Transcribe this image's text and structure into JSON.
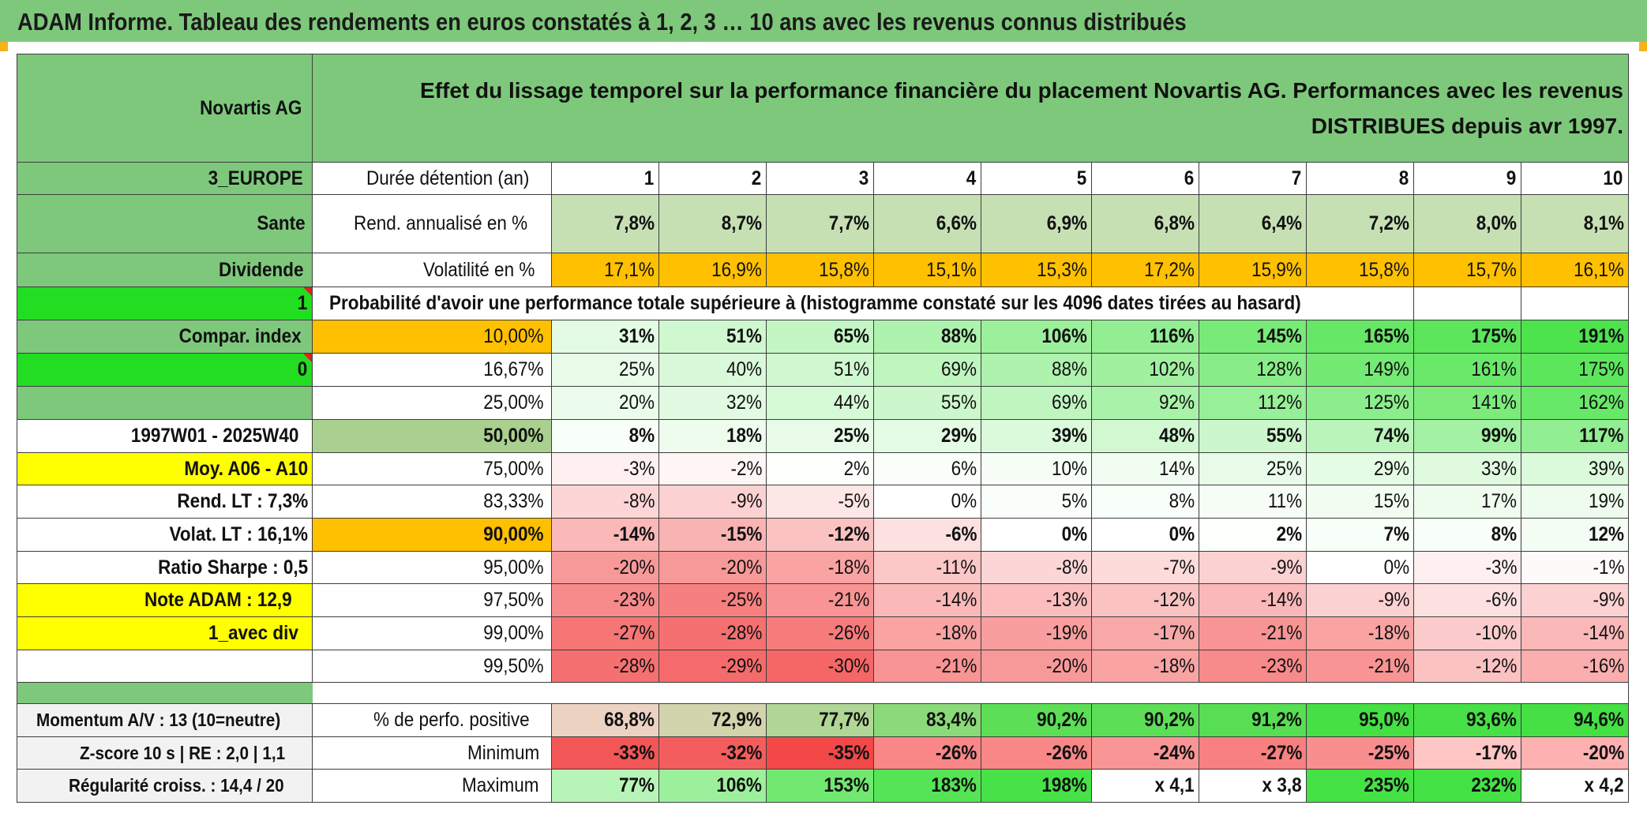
{
  "title": "ADAM Informe. Tableau des rendements en euros constatés à 1, 2, 3 … 10 ans avec les revenus connus distribués",
  "header": {
    "stock_name": "Novartis AG",
    "description": "Effet du lissage temporel sur la performance financière du placement Novartis AG. Performances avec les revenus DISTRIBUES depuis avr 1997."
  },
  "left_panel": {
    "zone": "3_EUROPE",
    "sector": "Sante",
    "type": "Dividende",
    "value1": "1",
    "compar_index": "Compar. index",
    "value0": "0",
    "period": "1997W01 - 2025W40",
    "moy": "Moy. A06 - A10",
    "rend_lt": "Rend. LT :   7,3%",
    "volat_lt": "Volat. LT :   16,1%",
    "sharpe": "Ratio Sharpe :   0,5",
    "note": "Note ADAM : 12,9",
    "avec_div": "1_avec div",
    "momentum": "Momentum A/V : 13 (10=neutre)",
    "zscore": "Z-score 10 s | RE : 2,0 | 1,1",
    "regularite": "Régularité croiss. : 14,4 / 20"
  },
  "labels": {
    "duree": "Durée détention (an)",
    "rend": "Rend. annualisé en %",
    "volat": "Volatilité en %",
    "proba": "Probabilité d'avoir une performance totale supérieure à (histogramme constaté sur les 4096 dates tirées au hasard)",
    "perfo_pos": "% de perfo. positive",
    "minimum": "Minimum",
    "maximum": "Maximum"
  },
  "years": [
    "1",
    "2",
    "3",
    "4",
    "5",
    "6",
    "7",
    "8",
    "9",
    "10"
  ],
  "rendement": [
    "7,8%",
    "8,7%",
    "7,7%",
    "6,6%",
    "6,9%",
    "6,8%",
    "6,4%",
    "7,2%",
    "8,0%",
    "8,1%"
  ],
  "volatilite": [
    "17,1%",
    "16,9%",
    "15,8%",
    "15,1%",
    "15,3%",
    "17,2%",
    "15,9%",
    "15,8%",
    "15,7%",
    "16,1%"
  ],
  "quantiles": [
    {
      "label": "10,00%",
      "values": [
        "31%",
        "51%",
        "65%",
        "88%",
        "106%",
        "116%",
        "145%",
        "165%",
        "175%",
        "191%"
      ]
    },
    {
      "label": "16,67%",
      "values": [
        "25%",
        "40%",
        "51%",
        "69%",
        "88%",
        "102%",
        "128%",
        "149%",
        "161%",
        "175%"
      ]
    },
    {
      "label": "25,00%",
      "values": [
        "20%",
        "32%",
        "44%",
        "55%",
        "69%",
        "92%",
        "112%",
        "125%",
        "141%",
        "162%"
      ]
    },
    {
      "label": "50,00%",
      "values": [
        "8%",
        "18%",
        "25%",
        "29%",
        "39%",
        "48%",
        "55%",
        "74%",
        "99%",
        "117%"
      ]
    },
    {
      "label": "75,00%",
      "values": [
        "-3%",
        "-2%",
        "2%",
        "6%",
        "10%",
        "14%",
        "25%",
        "29%",
        "33%",
        "39%"
      ]
    },
    {
      "label": "83,33%",
      "values": [
        "-8%",
        "-9%",
        "-5%",
        "0%",
        "5%",
        "8%",
        "11%",
        "15%",
        "17%",
        "19%"
      ]
    },
    {
      "label": "90,00%",
      "values": [
        "-14%",
        "-15%",
        "-12%",
        "-6%",
        "0%",
        "0%",
        "2%",
        "7%",
        "8%",
        "12%"
      ]
    },
    {
      "label": "95,00%",
      "values": [
        "-20%",
        "-20%",
        "-18%",
        "-11%",
        "-8%",
        "-7%",
        "-9%",
        "0%",
        "-3%",
        "-1%"
      ]
    },
    {
      "label": "97,50%",
      "values": [
        "-23%",
        "-25%",
        "-21%",
        "-14%",
        "-13%",
        "-12%",
        "-14%",
        "-9%",
        "-6%",
        "-9%"
      ]
    },
    {
      "label": "99,00%",
      "values": [
        "-27%",
        "-28%",
        "-26%",
        "-18%",
        "-19%",
        "-17%",
        "-21%",
        "-18%",
        "-10%",
        "-14%"
      ]
    },
    {
      "label": "99,50%",
      "values": [
        "-28%",
        "-29%",
        "-30%",
        "-21%",
        "-20%",
        "-18%",
        "-23%",
        "-21%",
        "-12%",
        "-16%"
      ]
    }
  ],
  "perfo_positive": [
    "68,8%",
    "72,9%",
    "77,7%",
    "83,4%",
    "90,2%",
    "90,2%",
    "91,2%",
    "95,0%",
    "93,6%",
    "94,6%"
  ],
  "minimum": [
    "-33%",
    "-32%",
    "-35%",
    "-26%",
    "-26%",
    "-24%",
    "-27%",
    "-25%",
    "-17%",
    "-20%"
  ],
  "maximum": [
    "77%",
    "106%",
    "153%",
    "183%",
    "198%",
    "x 4,1",
    "x 3,8",
    "235%",
    "232%",
    "x 4,2"
  ],
  "colors": {
    "header_green": "#7ec87c",
    "bright_green": "#22dd22",
    "yellow": "#ffff00",
    "orange": "#ffc000",
    "light_green_rend": "#c6e0b4",
    "red_text": "#e0101a"
  }
}
